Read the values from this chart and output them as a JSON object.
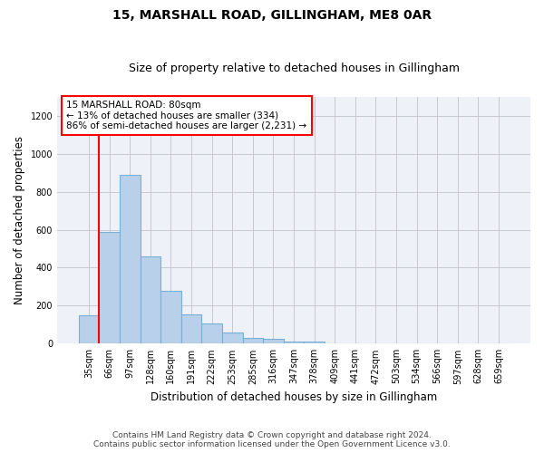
{
  "title": "15, MARSHALL ROAD, GILLINGHAM, ME8 0AR",
  "subtitle": "Size of property relative to detached houses in Gillingham",
  "xlabel": "Distribution of detached houses by size in Gillingham",
  "ylabel": "Number of detached properties",
  "footer_line1": "Contains HM Land Registry data © Crown copyright and database right 2024.",
  "footer_line2": "Contains public sector information licensed under the Open Government Licence v3.0.",
  "bar_labels": [
    "35sqm",
    "66sqm",
    "97sqm",
    "128sqm",
    "160sqm",
    "191sqm",
    "222sqm",
    "253sqm",
    "285sqm",
    "316sqm",
    "347sqm",
    "378sqm",
    "409sqm",
    "441sqm",
    "472sqm",
    "503sqm",
    "534sqm",
    "566sqm",
    "597sqm",
    "628sqm",
    "659sqm"
  ],
  "bar_values": [
    150,
    590,
    890,
    460,
    280,
    155,
    105,
    60,
    28,
    25,
    12,
    12,
    0,
    0,
    0,
    0,
    0,
    0,
    0,
    0,
    0
  ],
  "bar_color": "#b8d0ea",
  "bar_edge_color": "#7aaed4",
  "ylim": [
    0,
    1300
  ],
  "yticks": [
    0,
    200,
    400,
    600,
    800,
    1000,
    1200
  ],
  "annotation_title": "15 MARSHALL ROAD: 80sqm",
  "annotation_line1": "← 13% of detached houses are smaller (334)",
  "annotation_line2": "86% of semi-detached houses are larger (2,231) →",
  "red_line_x": 0.5,
  "bg_color": "#eef2f8"
}
